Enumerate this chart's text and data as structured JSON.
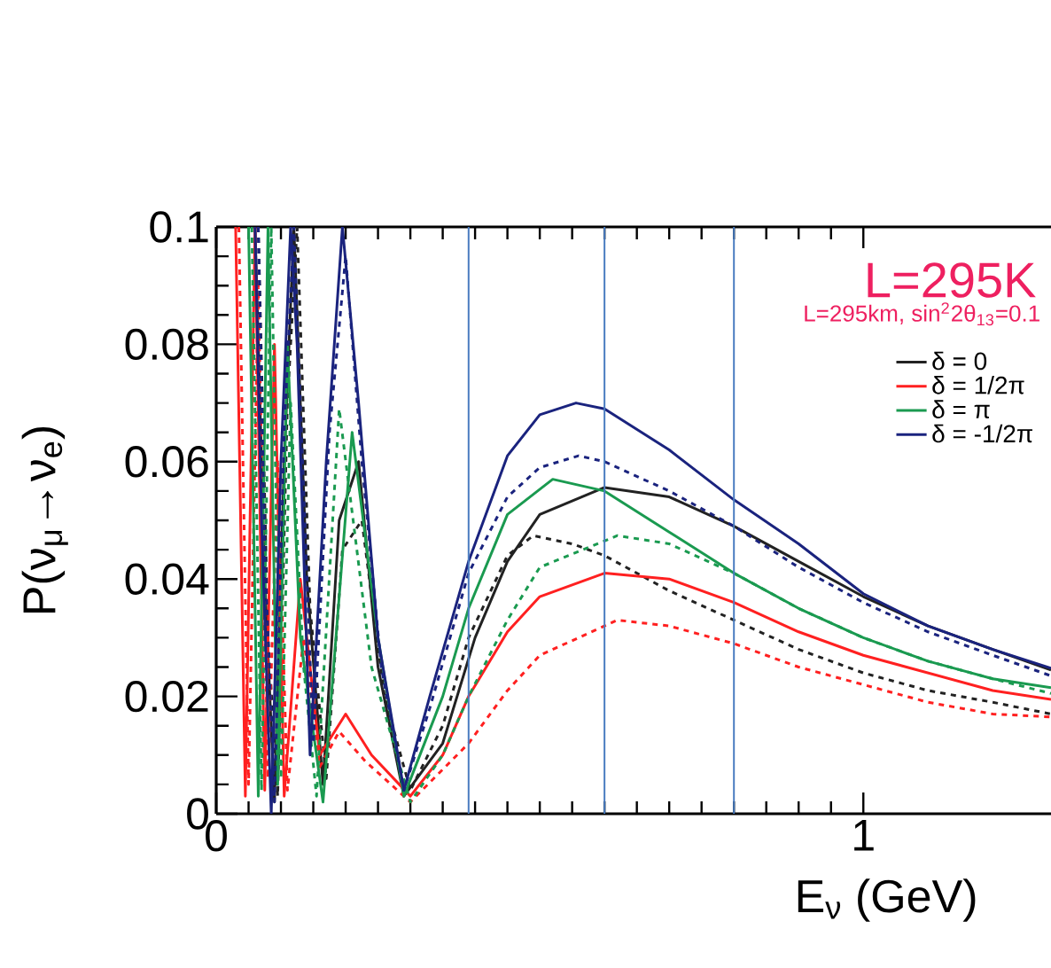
{
  "chart_data": {
    "type": "line",
    "title": "L=295K",
    "subtitle": "L=295km, sin$^{2}$2θ$_{13}$=0.1",
    "xlabel": "E$_{ν}$ (GeV)",
    "ylabel": "P(ν$_{μ}$→ν$_{e}$)",
    "xlim": [
      0,
      1.29
    ],
    "ylim": [
      0,
      0.1
    ],
    "xticks": [
      0,
      1
    ],
    "yticks": [
      {
        "value": 0,
        "label": "0"
      },
      0.02,
      0.04,
      0.06,
      0.08,
      0.1
    ],
    "legend": "top right",
    "grid": false,
    "ref_lines": [
      {
        "axis": "x",
        "value": 0.39,
        "color": "#4a7cc0"
      },
      {
        "axis": "x",
        "value": 0.6,
        "color": "#4a7cc0"
      },
      {
        "axis": "x",
        "value": 0.8,
        "color": "#4a7cc0"
      }
    ],
    "series": [
      {
        "name": "δ = 0",
        "color": "#222222",
        "line_style": "solid",
        "x": [
          0.06,
          0.075,
          0.09,
          0.105,
          0.12,
          0.14,
          0.165,
          0.19,
          0.22,
          0.25,
          0.29,
          0.35,
          0.4,
          0.45,
          0.5,
          0.6,
          0.7,
          0.8,
          0.9,
          1.0,
          1.1,
          1.2,
          1.29
        ],
        "values": [
          0.1,
          0.04,
          0.002,
          0.06,
          0.1,
          0.04,
          0.005,
          0.05,
          0.06,
          0.025,
          0.003,
          0.012,
          0.03,
          0.043,
          0.051,
          0.0556,
          0.054,
          0.049,
          0.043,
          0.037,
          0.032,
          0.028,
          0.0245
        ]
      },
      {
        "color": "#222222",
        "line_style": "dashed",
        "x": [
          0.065,
          0.08,
          0.095,
          0.11,
          0.125,
          0.145,
          0.17,
          0.195,
          0.225,
          0.26,
          0.3,
          0.35,
          0.39,
          0.45,
          0.49,
          0.55,
          0.6,
          0.7,
          0.8,
          0.9,
          1.0,
          1.1,
          1.2,
          1.29
        ],
        "values": [
          0.1,
          0.03,
          0.003,
          0.07,
          0.1,
          0.035,
          0.006,
          0.045,
          0.05,
          0.02,
          0.004,
          0.015,
          0.03,
          0.044,
          0.0474,
          0.046,
          0.044,
          0.038,
          0.033,
          0.028,
          0.024,
          0.021,
          0.019,
          0.017
        ]
      },
      {
        "name": "δ = 1/2π",
        "color": "#ff2020",
        "line_style": "solid",
        "x": [
          0.03,
          0.045,
          0.06,
          0.075,
          0.09,
          0.105,
          0.13,
          0.16,
          0.2,
          0.24,
          0.3,
          0.35,
          0.39,
          0.45,
          0.5,
          0.6,
          0.7,
          0.8,
          0.9,
          1.0,
          1.1,
          1.2,
          1.29
        ],
        "values": [
          0.1,
          0.003,
          0.1,
          0.004,
          0.08,
          0.003,
          0.04,
          0.01,
          0.017,
          0.01,
          0.003,
          0.01,
          0.02,
          0.031,
          0.037,
          0.041,
          0.04,
          0.036,
          0.031,
          0.027,
          0.024,
          0.021,
          0.0195
        ]
      },
      {
        "color": "#ff2020",
        "line_style": "dashed",
        "x": [
          0.035,
          0.05,
          0.065,
          0.08,
          0.095,
          0.11,
          0.135,
          0.16,
          0.19,
          0.23,
          0.3,
          0.39,
          0.45,
          0.5,
          0.62,
          0.7,
          0.8,
          0.9,
          1.0,
          1.1,
          1.2,
          1.29
        ],
        "values": [
          0.1,
          0.005,
          0.09,
          0.006,
          0.06,
          0.004,
          0.03,
          0.008,
          0.014,
          0.009,
          0.002,
          0.012,
          0.021,
          0.027,
          0.033,
          0.032,
          0.029,
          0.025,
          0.022,
          0.019,
          0.017,
          0.0165
        ]
      },
      {
        "name": "δ = π",
        "color": "#1a9a50",
        "line_style": "solid",
        "x": [
          0.05,
          0.065,
          0.08,
          0.095,
          0.11,
          0.13,
          0.165,
          0.21,
          0.25,
          0.29,
          0.35,
          0.39,
          0.45,
          0.52,
          0.6,
          0.7,
          0.8,
          0.9,
          1.0,
          1.1,
          1.2,
          1.29
        ],
        "values": [
          0.1,
          0.003,
          0.1,
          0.005,
          0.08,
          0.03,
          0.002,
          0.065,
          0.03,
          0.003,
          0.02,
          0.035,
          0.051,
          0.057,
          0.055,
          0.048,
          0.041,
          0.035,
          0.03,
          0.026,
          0.023,
          0.0215
        ]
      },
      {
        "color": "#1a9a50",
        "line_style": "dashed",
        "x": [
          0.055,
          0.07,
          0.085,
          0.1,
          0.115,
          0.135,
          0.155,
          0.19,
          0.24,
          0.3,
          0.35,
          0.39,
          0.45,
          0.5,
          0.62,
          0.7,
          0.8,
          0.9,
          1.0,
          1.1,
          1.2,
          1.29
        ],
        "values": [
          0.1,
          0.004,
          0.1,
          0.006,
          0.07,
          0.025,
          0.003,
          0.069,
          0.025,
          0.002,
          0.01,
          0.02,
          0.033,
          0.042,
          0.0474,
          0.046,
          0.041,
          0.035,
          0.03,
          0.026,
          0.023,
          0.0205
        ]
      },
      {
        "name": "δ = -1/2π",
        "color": "#1a237e",
        "line_style": "solid",
        "x": [
          0.06,
          0.07,
          0.085,
          0.1,
          0.115,
          0.125,
          0.145,
          0.17,
          0.195,
          0.22,
          0.25,
          0.29,
          0.33,
          0.39,
          0.45,
          0.5,
          0.556,
          0.6,
          0.7,
          0.8,
          0.9,
          1.0,
          1.1,
          1.2,
          1.29
        ],
        "values": [
          0.1,
          0.05,
          0.0,
          0.06,
          0.1,
          0.08,
          0.01,
          0.06,
          0.1,
          0.07,
          0.03,
          0.004,
          0.02,
          0.043,
          0.061,
          0.068,
          0.07,
          0.069,
          0.062,
          0.0535,
          0.046,
          0.0375,
          0.032,
          0.028,
          0.0248
        ]
      },
      {
        "color": "#1a237e",
        "line_style": "dashed",
        "x": [
          0.065,
          0.075,
          0.09,
          0.105,
          0.12,
          0.13,
          0.15,
          0.175,
          0.2,
          0.225,
          0.255,
          0.29,
          0.33,
          0.39,
          0.45,
          0.5,
          0.56,
          0.6,
          0.7,
          0.8,
          0.9,
          1.0,
          1.1,
          1.2,
          1.29
        ],
        "values": [
          0.1,
          0.045,
          0.002,
          0.065,
          0.1,
          0.07,
          0.012,
          0.065,
          0.095,
          0.06,
          0.025,
          0.004,
          0.018,
          0.041,
          0.054,
          0.059,
          0.061,
          0.06,
          0.055,
          0.049,
          0.042,
          0.036,
          0.031,
          0.027,
          0.0235
        ]
      }
    ]
  }
}
